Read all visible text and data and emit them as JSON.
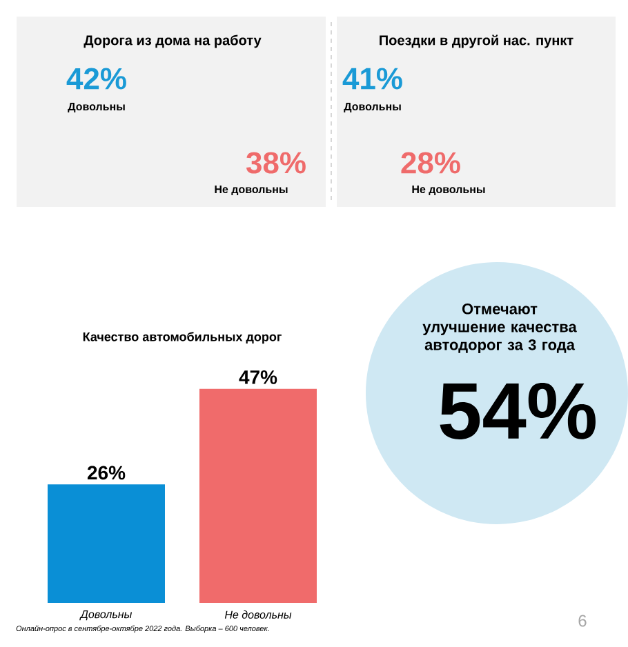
{
  "chart_data": [
    {
      "type": "other",
      "title": "Дорога из дома на работу",
      "annotations": [
        "42%",
        "Довольны",
        "38%",
        "Не довольны"
      ],
      "colors": [
        "#1a9ad6",
        "#ef6b6b"
      ]
    },
    {
      "type": "other",
      "title": "Поездки в другой нас. пункт",
      "annotations": [
        "41%",
        "Довольны",
        "28%",
        "Не довольны"
      ],
      "colors": [
        "#1a9ad6",
        "#ef6b6b"
      ]
    },
    {
      "type": "bar",
      "title": "Качество автомобильных дорог",
      "categories": [
        "Довольны",
        "Не довольны"
      ],
      "values": [
        26,
        47
      ],
      "value_labels": [
        "26%",
        "47%"
      ],
      "colors": [
        "#0a8fd6",
        "#f06b6b"
      ],
      "annotations": [
        "Онлайн-опрос в сентябре-октябре 2022 года. Выборка – 600 человек.",
        "6"
      ]
    },
    {
      "type": "other",
      "title": "Отмечают улучшение качества автодорог за 3 года",
      "annotations": [
        "54%"
      ],
      "color": "#cfe8f3"
    }
  ]
}
